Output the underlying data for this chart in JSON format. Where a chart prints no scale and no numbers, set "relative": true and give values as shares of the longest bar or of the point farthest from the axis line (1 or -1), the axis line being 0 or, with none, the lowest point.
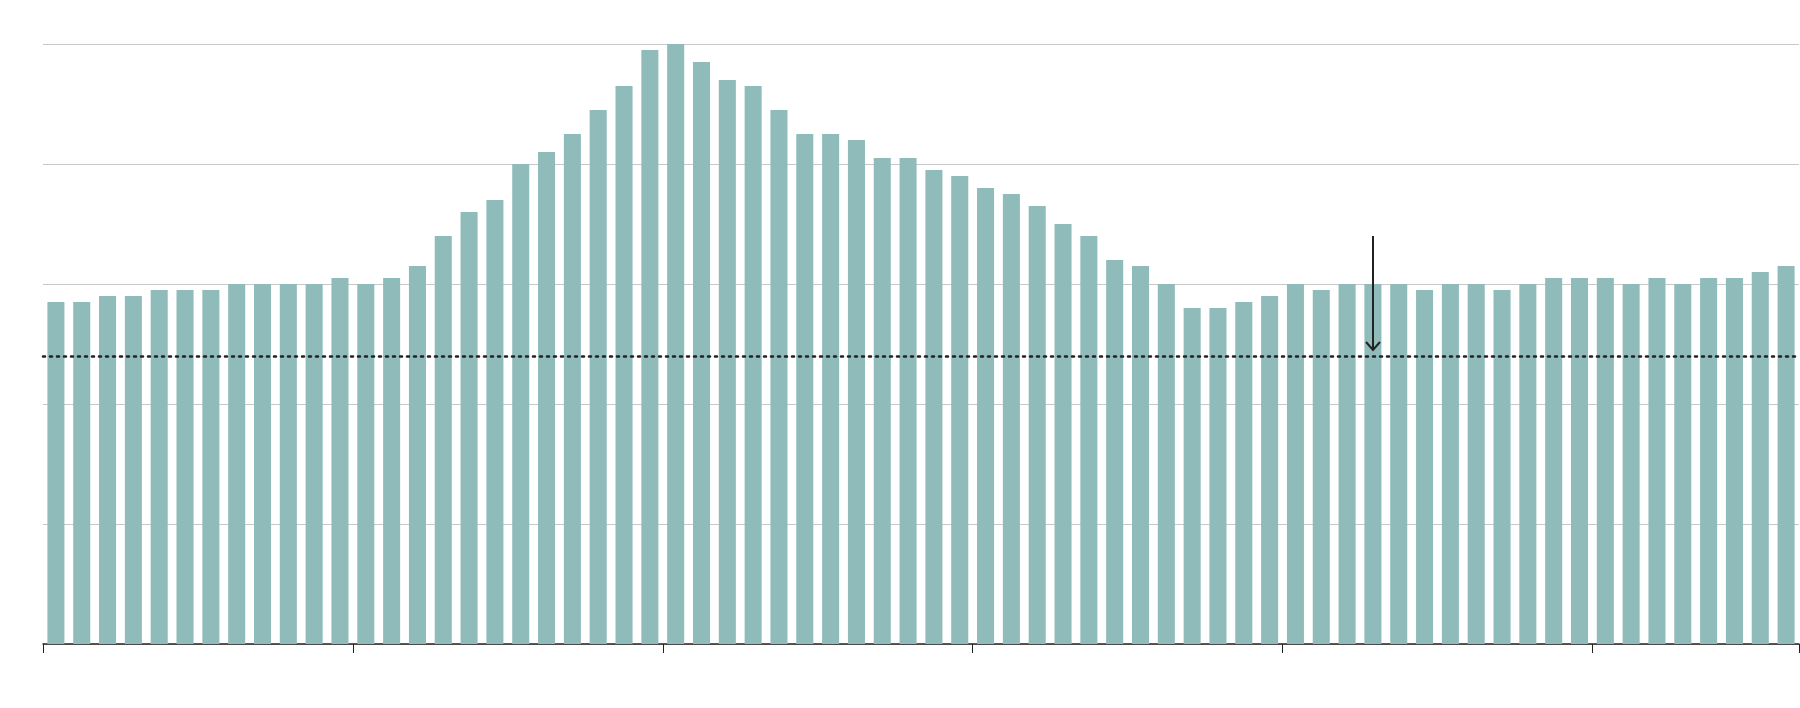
{
  "chart_data": {
    "type": "bar",
    "relative": true,
    "color": "#8fbcba",
    "grid": "y",
    "categories": [
      null,
      null,
      null,
      null,
      null,
      null,
      null,
      null,
      null,
      null,
      null,
      null,
      null,
      null,
      null,
      null,
      null,
      null,
      null,
      null,
      null,
      null,
      null,
      null,
      null,
      null,
      null,
      null,
      null,
      null,
      null,
      null,
      null,
      null,
      null,
      null,
      null,
      null,
      null,
      null,
      null,
      null,
      null,
      null,
      null,
      null,
      null,
      null,
      null,
      null,
      null,
      null,
      null,
      null,
      null,
      null,
      null,
      null,
      null,
      null,
      null,
      null,
      null,
      null,
      null,
      null,
      null,
      null
    ],
    "values": [
      0.57,
      0.57,
      0.58,
      0.58,
      0.59,
      0.59,
      0.59,
      0.6,
      0.6,
      0.6,
      0.6,
      0.61,
      0.6,
      0.61,
      0.63,
      0.68,
      0.72,
      0.74,
      0.8,
      0.82,
      0.85,
      0.89,
      0.93,
      0.99,
      1,
      0.97,
      0.94,
      0.93,
      0.89,
      0.85,
      0.85,
      0.84,
      0.81,
      0.81,
      0.79,
      0.78,
      0.76,
      0.75,
      0.73,
      0.7,
      0.68,
      0.64,
      0.63,
      0.6,
      0.56,
      0.56,
      0.57,
      0.58,
      0.6,
      0.59,
      0.6,
      0.6,
      0.6,
      0.59,
      0.6,
      0.6,
      0.59,
      0.6,
      0.61,
      0.61,
      0.61,
      0.6,
      0.61,
      0.6,
      0.61,
      0.61,
      0.62,
      0.63
    ],
    "ref_lines": [
      {
        "axis": "y",
        "value": 0.48,
        "color": "#222222",
        "line_style": "dotted"
      }
    ]
  }
}
